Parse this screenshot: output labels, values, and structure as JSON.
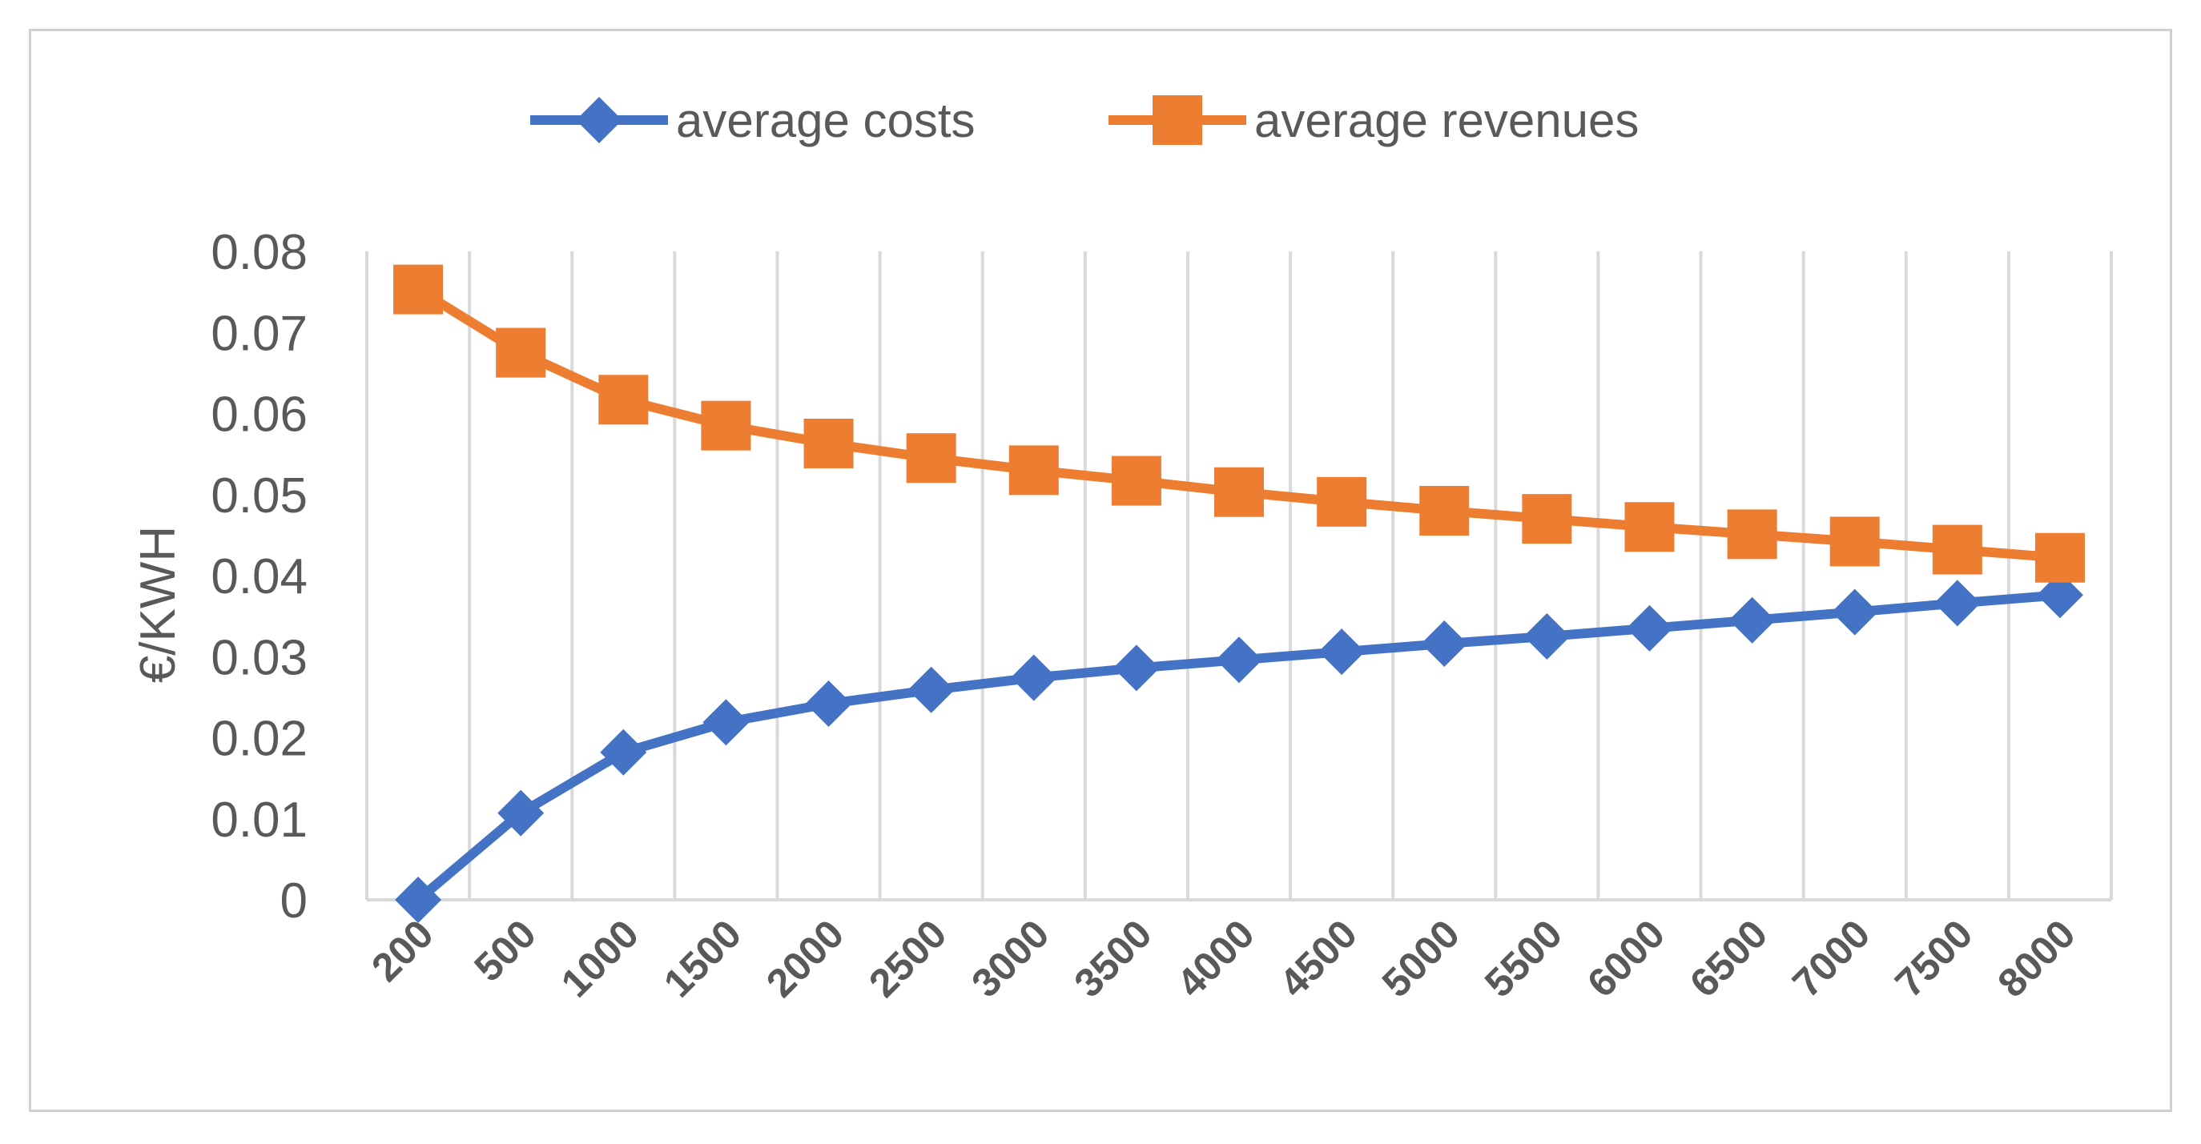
{
  "chart_data": {
    "type": "line",
    "title": "",
    "xlabel": "",
    "ylabel": "€/KWH",
    "ylim": [
      0,
      0.08
    ],
    "y_ticks": [
      "0",
      "0.01",
      "0.02",
      "0.03",
      "0.04",
      "0.05",
      "0.06",
      "0.07",
      "0.08"
    ],
    "y_tick_values": [
      0,
      0.01,
      0.02,
      0.03,
      0.04,
      0.05,
      0.06,
      0.07,
      0.08
    ],
    "grid": "vertical",
    "legend_position": "top-center",
    "categories": [
      "200",
      "500",
      "1000",
      "1500",
      "2000",
      "2500",
      "3000",
      "3500",
      "4000",
      "4500",
      "5000",
      "5500",
      "6000",
      "6500",
      "7000",
      "7500",
      "8000"
    ],
    "series": [
      {
        "name": "average costs",
        "color": "#4472C4",
        "marker": "diamond",
        "values": [
          0.0,
          0.0107,
          0.0182,
          0.0219,
          0.0242,
          0.0259,
          0.0274,
          0.0286,
          0.0296,
          0.0306,
          0.0316,
          0.0325,
          0.0335,
          0.0345,
          0.0355,
          0.0366,
          0.0376
        ]
      },
      {
        "name": "average revenues",
        "color": "#ED7D31",
        "marker": "square",
        "values": [
          0.0753,
          0.0675,
          0.0617,
          0.0585,
          0.0563,
          0.0545,
          0.053,
          0.0517,
          0.0503,
          0.0491,
          0.048,
          0.047,
          0.046,
          0.0451,
          0.0442,
          0.0432,
          0.0422
        ]
      }
    ]
  }
}
